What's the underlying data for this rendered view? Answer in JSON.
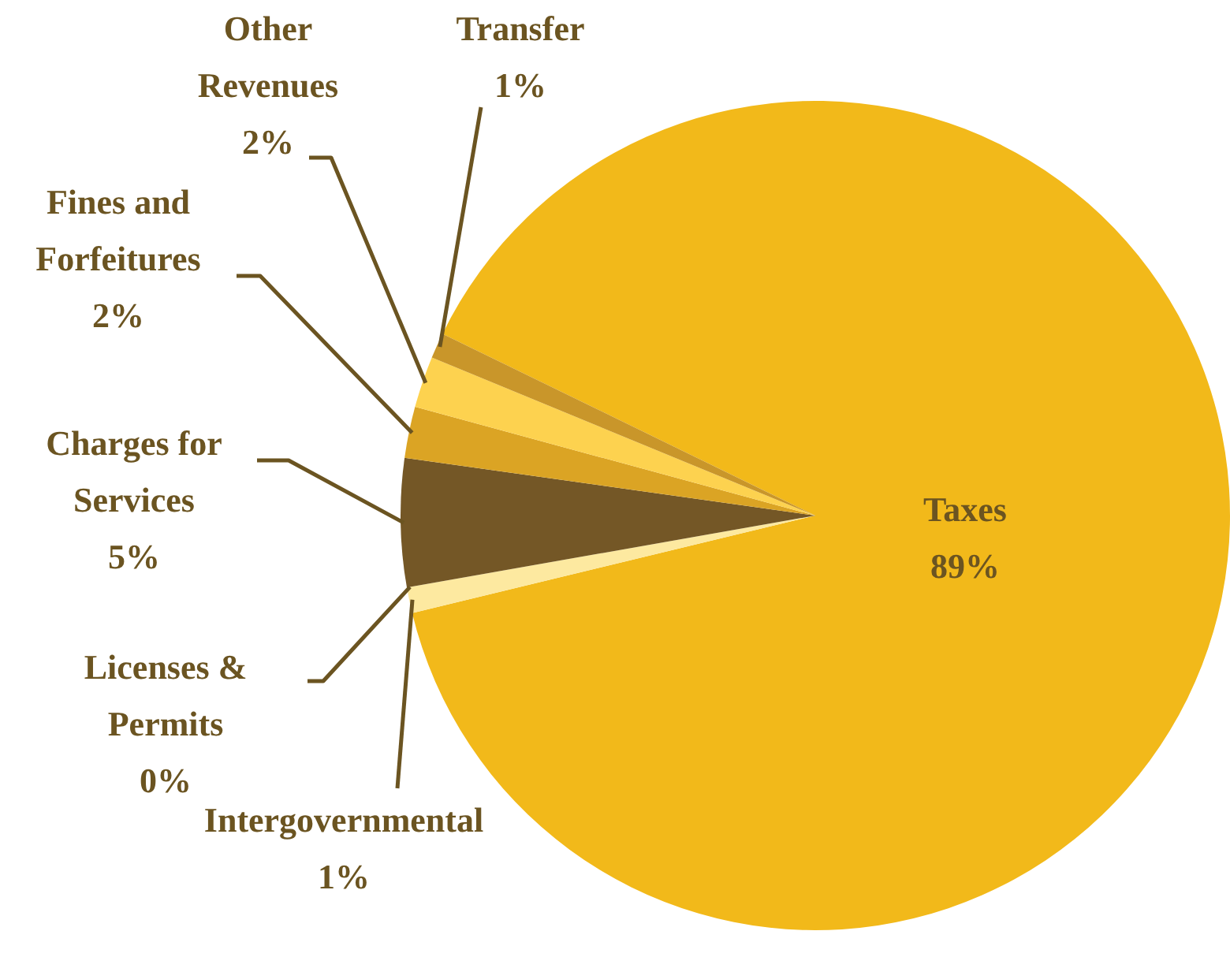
{
  "chart_data": {
    "type": "pie",
    "categories": [
      "Taxes",
      "Intergovernmental",
      "Licenses & Permits",
      "Charges for Services",
      "Fines and Forfeitures",
      "Other Revenues",
      "Transfer"
    ],
    "values": [
      89,
      1,
      0,
      5,
      2,
      2,
      1
    ],
    "value_labels": [
      "89%",
      "1%",
      "0%",
      "5%",
      "2%",
      "2%",
      "1%"
    ],
    "colors": [
      "#f2b91a",
      "#fde9a0",
      "#8b6a2a",
      "#745726",
      "#dba424",
      "#fdd24f",
      "#c9962a"
    ],
    "legend": false
  }
}
